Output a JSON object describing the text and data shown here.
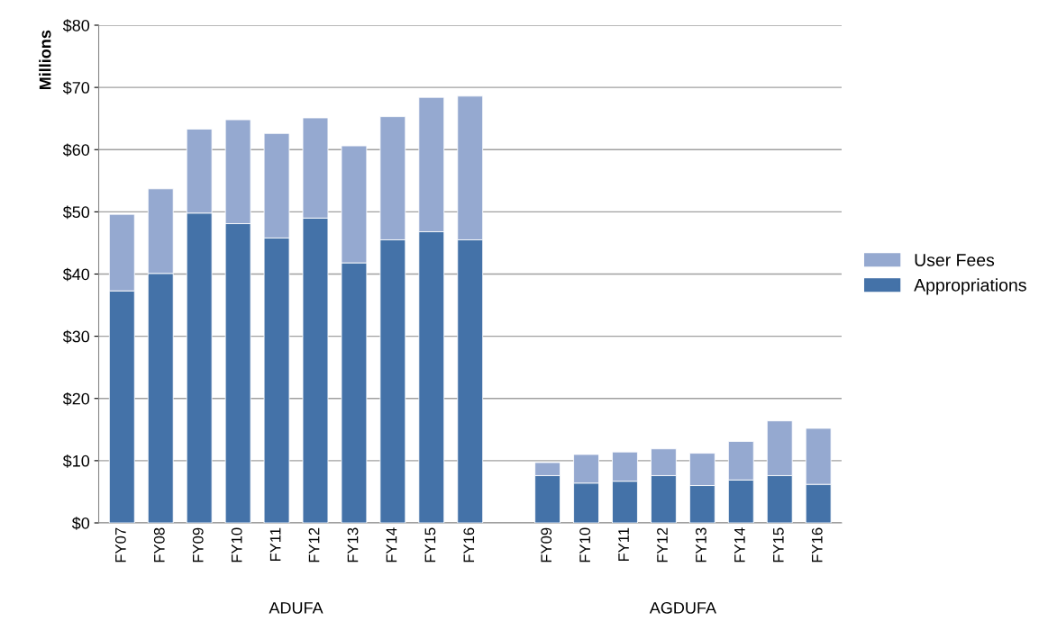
{
  "chart_data": {
    "type": "bar",
    "stacked": true,
    "ylabel": "Millions",
    "categories": [
      "FY07",
      "FY08",
      "FY09",
      "FY10",
      "FY11",
      "FY12",
      "FY13",
      "FY14",
      "FY15",
      "FY16",
      null,
      "FY09",
      "FY10",
      "FY11",
      "FY12",
      "FY13",
      "FY14",
      "FY15",
      "FY16"
    ],
    "series": [
      {
        "name": "Appropriations",
        "color": "#4472a8",
        "values": [
          37.3,
          40.1,
          49.8,
          48.1,
          45.8,
          49.0,
          41.8,
          45.5,
          46.8,
          45.5,
          null,
          7.6,
          6.4,
          6.7,
          7.6,
          6.0,
          6.9,
          7.6,
          6.2
        ]
      },
      {
        "name": "User Fees",
        "color": "#95a9d0",
        "values": [
          12.3,
          13.6,
          13.5,
          16.7,
          16.8,
          16.1,
          18.8,
          19.8,
          21.6,
          23.1,
          null,
          2.1,
          4.6,
          4.7,
          4.3,
          5.2,
          6.2,
          8.8,
          9.0
        ]
      }
    ],
    "ylim": [
      0,
      80
    ],
    "yticks": [
      {
        "value": 0,
        "label": "$0"
      },
      {
        "value": 10,
        "label": "$10"
      },
      {
        "value": 20,
        "label": "$20"
      },
      {
        "value": 30,
        "label": "$30"
      },
      {
        "value": 40,
        "label": "$40"
      },
      {
        "value": 50,
        "label": "$50"
      },
      {
        "value": 60,
        "label": "$60"
      },
      {
        "value": 70,
        "label": "$70"
      },
      {
        "value": 80,
        "label": "$80"
      }
    ],
    "grid": "y",
    "legend": "right",
    "annotations": [
      "ADUFA",
      "AGDUFA"
    ]
  }
}
